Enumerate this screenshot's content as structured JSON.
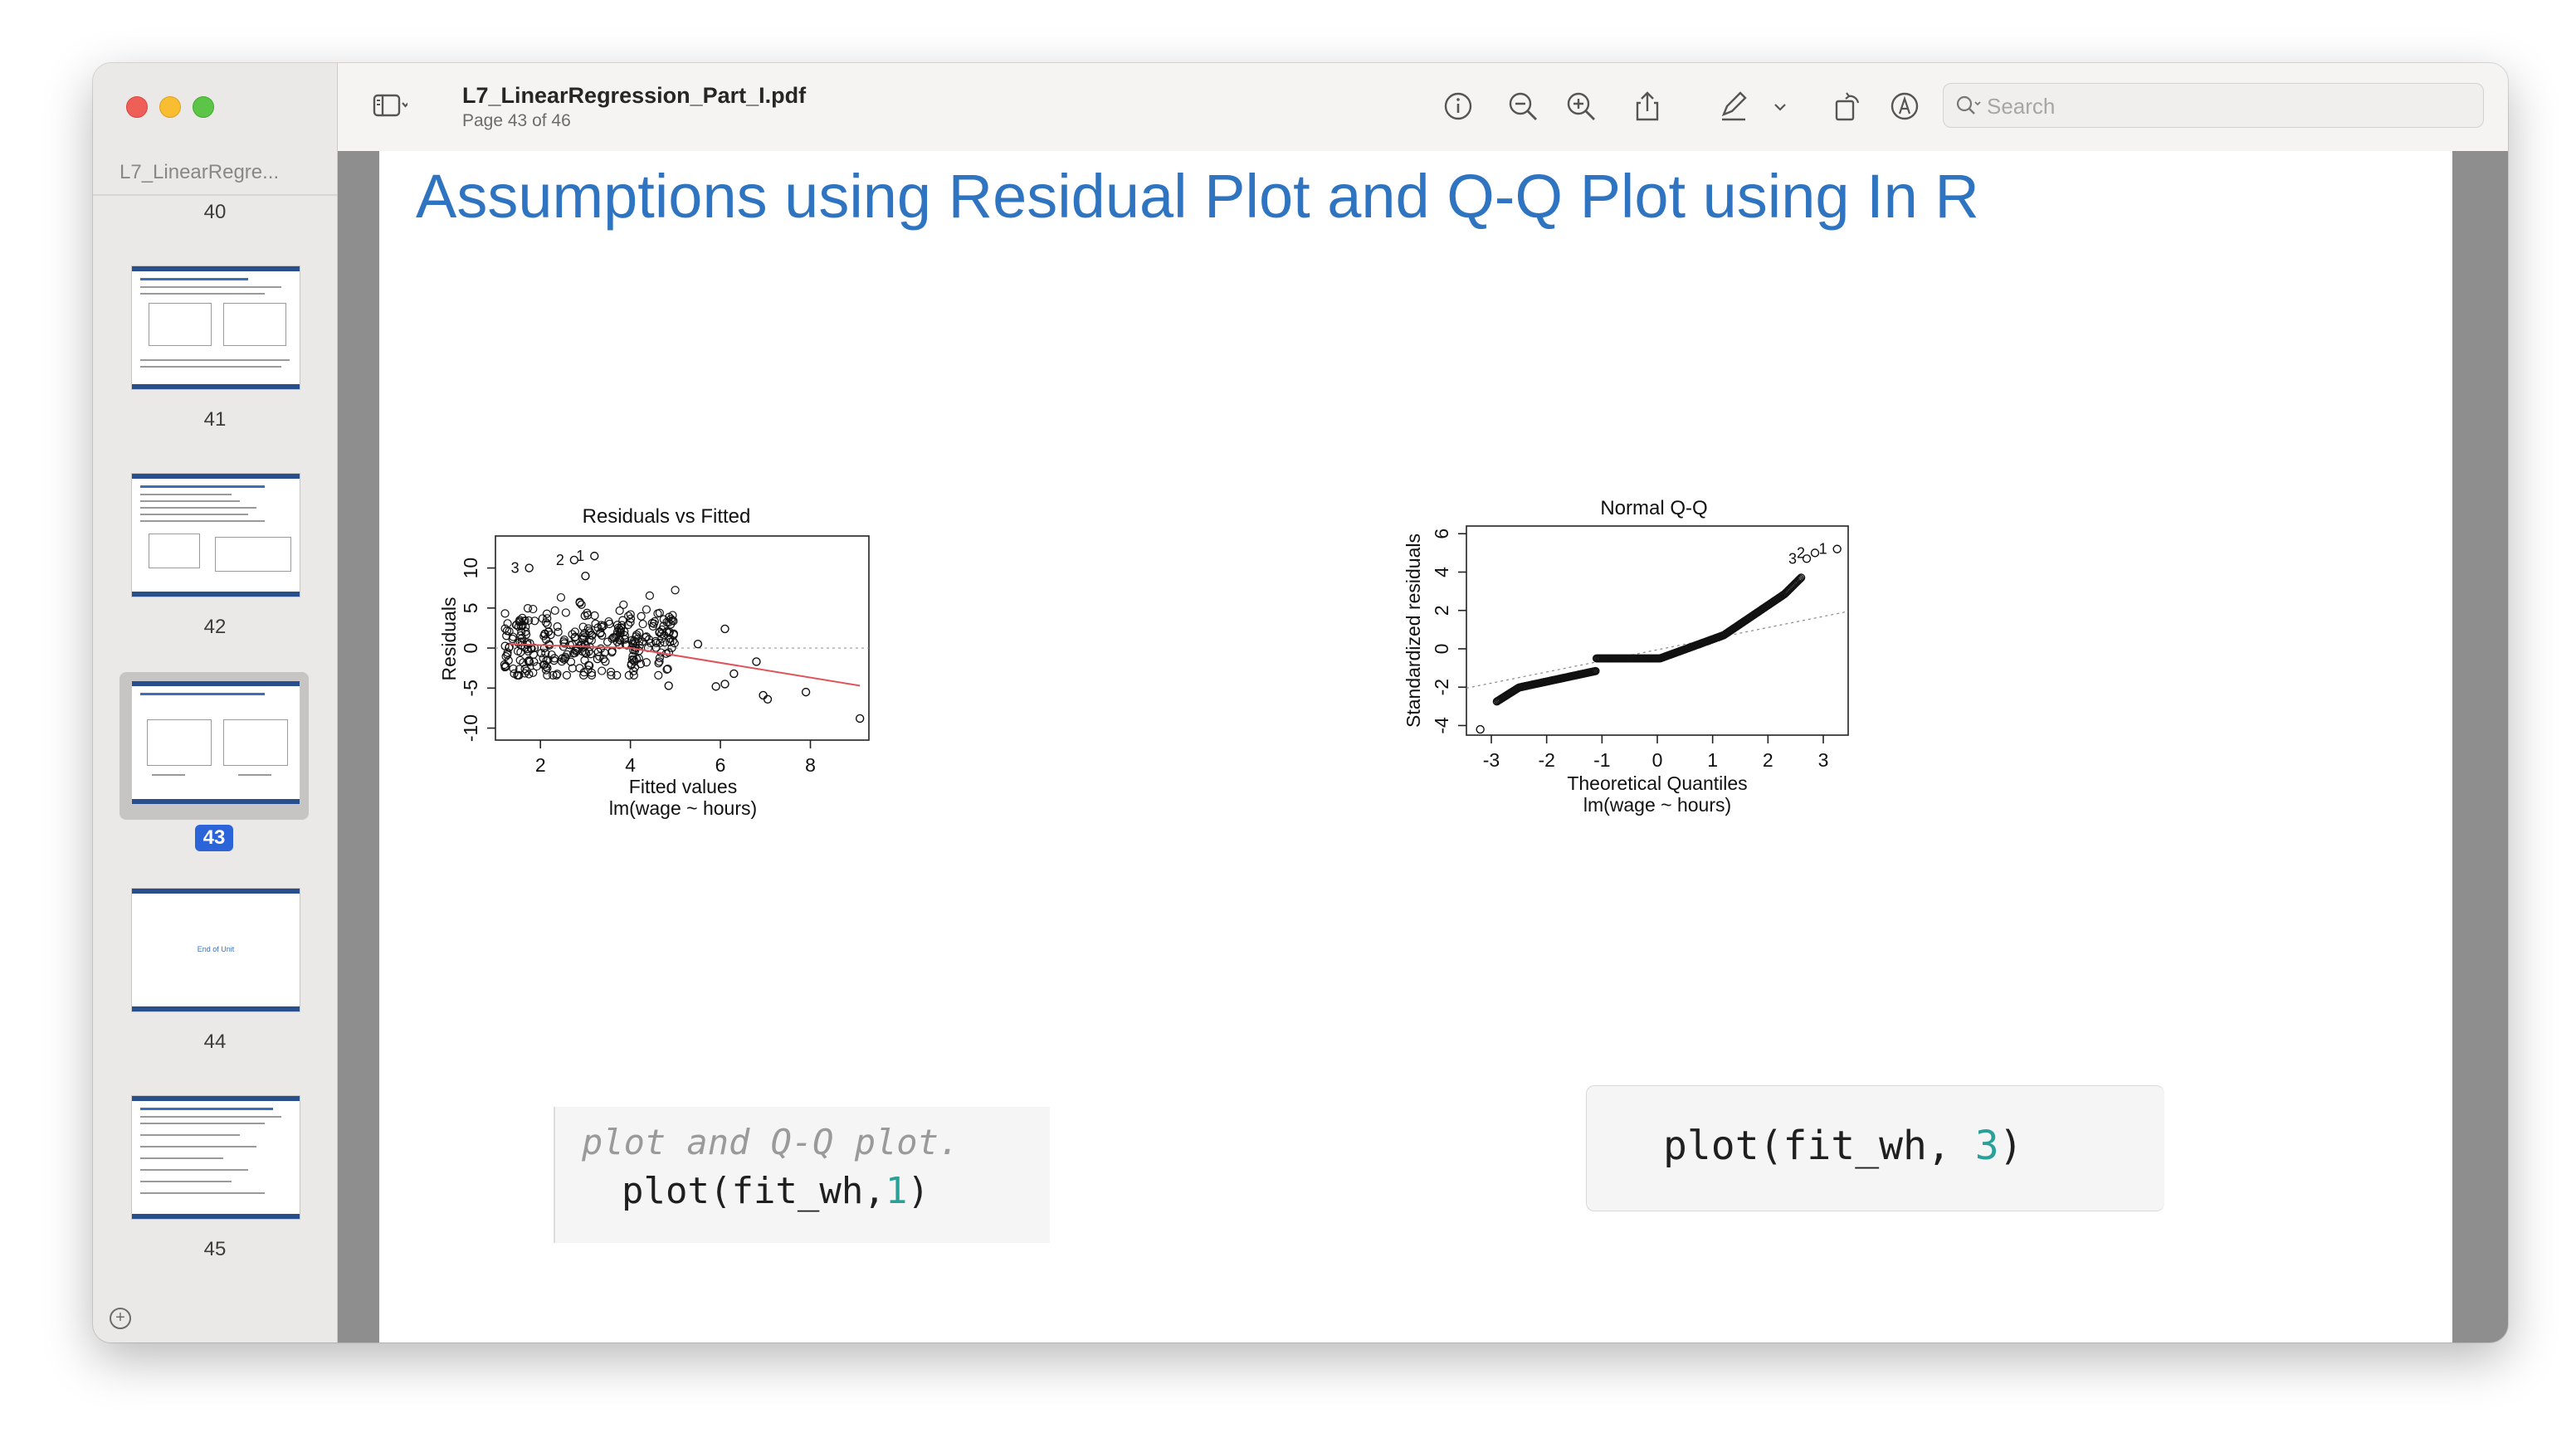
{
  "sidebar": {
    "title": "L7_LinearRegre...",
    "pages": [
      {
        "num": "40"
      },
      {
        "num": "41"
      },
      {
        "num": "42"
      },
      {
        "num": "43",
        "selected": true
      },
      {
        "num": "44",
        "center_text": "End of Unit"
      },
      {
        "num": "45"
      }
    ]
  },
  "toolbar": {
    "doc_title": "L7_LinearRegression_Part_I.pdf",
    "page_info": "Page 43 of 46",
    "search_placeholder": "Search"
  },
  "slide": {
    "title": "Assumptions using Residual Plot and Q-Q Plot using In R",
    "code_left_line1": "plot and Q-Q plot.",
    "code_left_line2_pre": "plot(fit_wh,",
    "code_left_line2_num": "1",
    "code_left_line2_post": ")",
    "code_right_pre": "plot(fit_wh, ",
    "code_right_num": "3",
    "code_right_post": ")"
  },
  "chart_data": [
    {
      "type": "scatter",
      "title": "Residuals vs Fitted",
      "xlabel": "Fitted values",
      "sublabel": "lm(wage ~ hours)",
      "ylabel": "Residuals",
      "xlim": [
        1,
        9.3
      ],
      "ylim": [
        -11.5,
        14
      ],
      "xticks": [
        "2",
        "4",
        "6",
        "8"
      ],
      "yticks": [
        "-10",
        "-5",
        "0",
        "5",
        "10"
      ],
      "labeled_points": [
        {
          "label": "1",
          "x": 3.2,
          "y": 11.5
        },
        {
          "label": "2",
          "x": 2.75,
          "y": 11
        },
        {
          "label": "3",
          "x": 1.75,
          "y": 10
        },
        {
          "label": "",
          "x": 9.1,
          "y": -8.8
        },
        {
          "label": "",
          "x": 7.9,
          "y": -5.5
        },
        {
          "label": "",
          "x": 7.05,
          "y": -6.4
        },
        {
          "label": "",
          "x": 6.95,
          "y": -5.9
        },
        {
          "label": "",
          "x": 6.8,
          "y": -1.7
        },
        {
          "label": "",
          "x": 6.1,
          "y": 2.4
        },
        {
          "label": "",
          "x": 6.1,
          "y": -4.5
        },
        {
          "label": "",
          "x": 5.9,
          "y": -4.8
        },
        {
          "label": "",
          "x": 6.3,
          "y": -3.2
        },
        {
          "label": "",
          "x": 5.5,
          "y": 0.5
        },
        {
          "label": "",
          "x": 4.85,
          "y": -4.7
        },
        {
          "label": "",
          "x": 3.0,
          "y": 9.0
        }
      ],
      "trend": {
        "x": [
          1.3,
          4.0,
          9.1
        ],
        "y": [
          0.5,
          0.0,
          -4.7
        ]
      },
      "reference_line_y": 0
    },
    {
      "type": "scatter",
      "title": "Normal Q-Q",
      "xlabel": "Theoretical Quantiles",
      "sublabel": "lm(wage ~ hours)",
      "ylabel": "Standardized residuals",
      "xlim": [
        -3.45,
        3.45
      ],
      "ylim": [
        -4.5,
        6.4
      ],
      "xticks": [
        "-3",
        "-2",
        "-1",
        "0",
        "1",
        "2",
        "3"
      ],
      "yticks": [
        "-4",
        "-2",
        "0",
        "2",
        "4",
        "6"
      ],
      "labeled_points": [
        {
          "label": "1",
          "x": 3.25,
          "y": 5.2
        },
        {
          "label": "2",
          "x": 2.85,
          "y": 5.0
        },
        {
          "label": "3",
          "x": 2.7,
          "y": 4.7
        },
        {
          "label": "",
          "x": -3.2,
          "y": -4.2
        }
      ],
      "reference_line": {
        "x": [
          -3.45,
          3.45
        ],
        "y": [
          -2.05,
          1.95
        ]
      }
    }
  ]
}
